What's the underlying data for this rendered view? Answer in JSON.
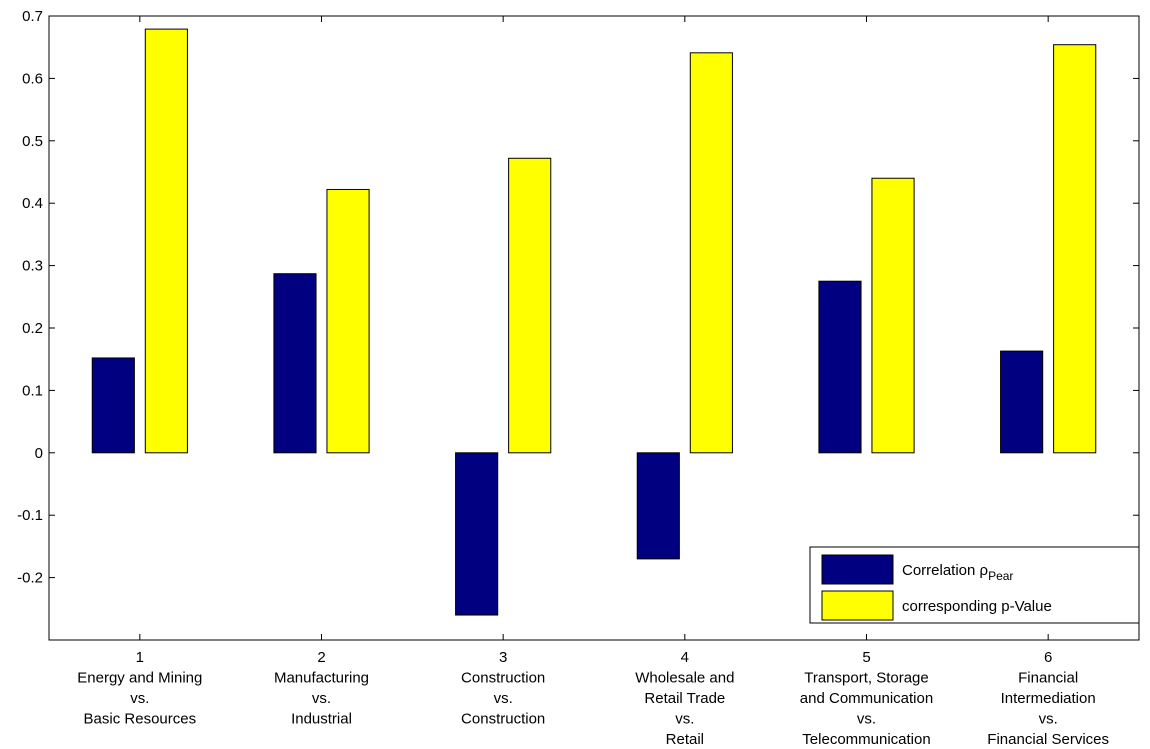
{
  "chart_data": {
    "type": "bar",
    "categories": [
      [
        "1",
        "Energy and Mining",
        "vs.",
        "Basic Resources"
      ],
      [
        "2",
        "Manufacturing",
        "vs.",
        "Industrial"
      ],
      [
        "3",
        "Construction",
        "vs.",
        "Construction"
      ],
      [
        "4",
        "Wholesale and",
        "Retail Trade",
        "vs.",
        "Retail"
      ],
      [
        "5",
        "Transport, Storage",
        "and Communication",
        "vs.",
        "Telecommunication"
      ],
      [
        "6",
        "Financial",
        "Intermediation",
        "vs.",
        "Financial Services"
      ]
    ],
    "series": [
      {
        "name": "Correlation ρ",
        "name_subscript": "Pear",
        "color": "#000080",
        "values": [
          0.152,
          0.287,
          -0.26,
          -0.17,
          0.275,
          0.163
        ]
      },
      {
        "name": "corresponding p-Value",
        "color": "#ffff00",
        "values": [
          0.679,
          0.422,
          0.472,
          0.641,
          0.44,
          0.654
        ]
      }
    ],
    "ylim": [
      -0.3,
      0.7
    ],
    "yticks": [
      -0.2,
      -0.1,
      0,
      0.1,
      0.2,
      0.3,
      0.4,
      0.5,
      0.6,
      0.7
    ],
    "legend": "lower right"
  }
}
